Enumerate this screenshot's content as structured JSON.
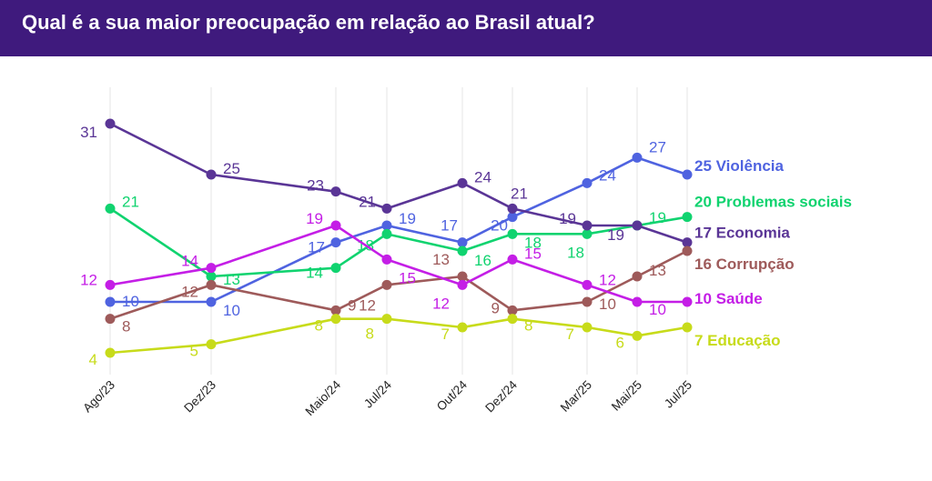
{
  "header": {
    "title": "Qual é a sua maior preocupação em relação ao Brasil atual?"
  },
  "chart_data": {
    "type": "line",
    "title": "Qual é a sua maior preocupação em relação ao Brasil atual?",
    "xlabel": "",
    "ylabel": "",
    "categories": [
      "Ago/23",
      "Dez/23",
      "Maio/24",
      "Jul/24",
      "Out/24",
      "Dez/24",
      "Mar/25",
      "Mai/25",
      "Jul/25"
    ],
    "ylim": [
      4,
      31
    ],
    "grid": "vertical",
    "legend": "right, inline at line ends",
    "series": [
      {
        "name": "Violência",
        "end_label": "25 Violência",
        "color": "#4f63e0",
        "values": [
          10,
          10,
          17,
          19,
          17,
          20,
          24,
          27,
          25
        ],
        "labels": [
          "10",
          "10",
          "17",
          "19",
          "17",
          "20",
          "24",
          "27",
          ""
        ]
      },
      {
        "name": "Problemas sociais",
        "end_label": "20 Problemas sociais",
        "color": "#10d36f",
        "values": [
          21,
          13,
          14,
          18,
          16,
          18,
          18,
          19,
          20
        ],
        "labels": [
          "21",
          "13",
          "14",
          "18",
          "16",
          "18",
          "18",
          "19",
          ""
        ]
      },
      {
        "name": "Economia",
        "end_label": "17 Economia",
        "color": "#5a3596",
        "values": [
          31,
          25,
          23,
          21,
          24,
          21,
          19,
          19,
          17
        ],
        "labels": [
          "31",
          "25",
          "23",
          "21",
          "24",
          "21",
          "19",
          "19",
          ""
        ]
      },
      {
        "name": "Corrupção",
        "end_label": "16 Corrupção",
        "color": "#9e5a5a",
        "values": [
          8,
          12,
          9,
          12,
          13,
          9,
          10,
          13,
          16
        ],
        "labels": [
          "8",
          "12",
          "9",
          "12",
          "13",
          "9",
          "10",
          "13",
          ""
        ]
      },
      {
        "name": "Saúde",
        "end_label": "10 Saúde",
        "color": "#c41ee6",
        "values": [
          12,
          14,
          19,
          15,
          12,
          15,
          12,
          10,
          10
        ],
        "labels": [
          "12",
          "14",
          "19",
          "15",
          "12",
          "15",
          "12",
          "10",
          ""
        ]
      },
      {
        "name": "Educação",
        "end_label": "7 Educação",
        "color": "#c7db1a",
        "values": [
          4,
          5,
          8,
          8,
          7,
          8,
          7,
          6,
          7
        ],
        "labels": [
          "4",
          "5",
          "8",
          "8",
          "7",
          "8",
          "7",
          "6",
          ""
        ]
      }
    ]
  }
}
